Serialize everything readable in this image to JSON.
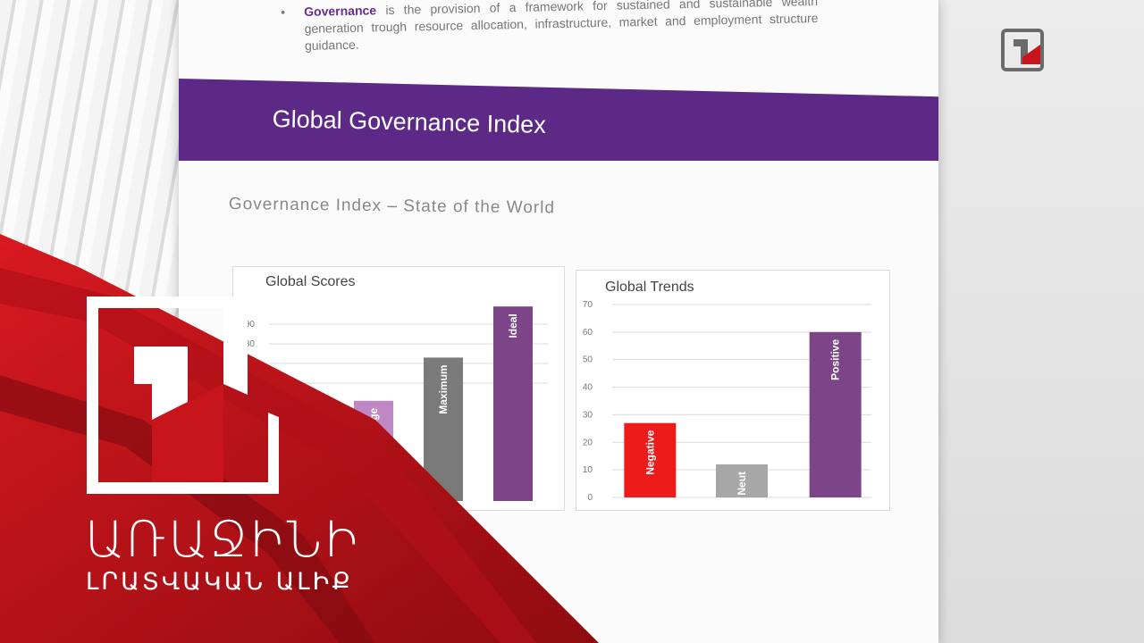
{
  "intro": {
    "term": "Governance",
    "text": " is the provision of a framework for sustained and sustainable wealth generation trough resource allocation, infrastructure, market and employment structure guidance."
  },
  "banner": {
    "title": "Global Governance Index"
  },
  "subtitle": "Governance Index – State of the World",
  "channel": {
    "line1": "ԱՌԱՋԻՆԻ",
    "line2": "ԼՐԱՏՎԱԿԱՆ ԱԼԻՔ"
  },
  "colors": {
    "purple": "#5c2a86",
    "bar_purple": "#7c4588",
    "bar_light": "#bf88c4",
    "bar_gray": "#7a7a7a",
    "red": "#ee1b1b",
    "gray_light": "#a7a7a7",
    "logo_red": "#c8141b"
  },
  "chart_data": [
    {
      "type": "bar",
      "title": "Global Scores",
      "categories": [
        "",
        "Average",
        "Maximum",
        "Ideal"
      ],
      "values": [
        null,
        51,
        73,
        99
      ],
      "yticks": [
        60,
        70,
        80,
        90
      ],
      "ylim": [
        0,
        100
      ],
      "bar_colors": [
        "#bf88c4",
        "#bf88c4",
        "#7a7a7a",
        "#7c4588"
      ]
    },
    {
      "type": "bar",
      "title": "Global Trends",
      "categories": [
        "Negative",
        "Neut",
        "Positive"
      ],
      "values": [
        27,
        12,
        60
      ],
      "yticks": [
        0,
        10,
        20,
        30,
        40,
        50,
        60,
        70
      ],
      "ylim": [
        0,
        70
      ],
      "bar_colors": [
        "#ee1b1b",
        "#a7a7a7",
        "#7c4588"
      ]
    }
  ]
}
